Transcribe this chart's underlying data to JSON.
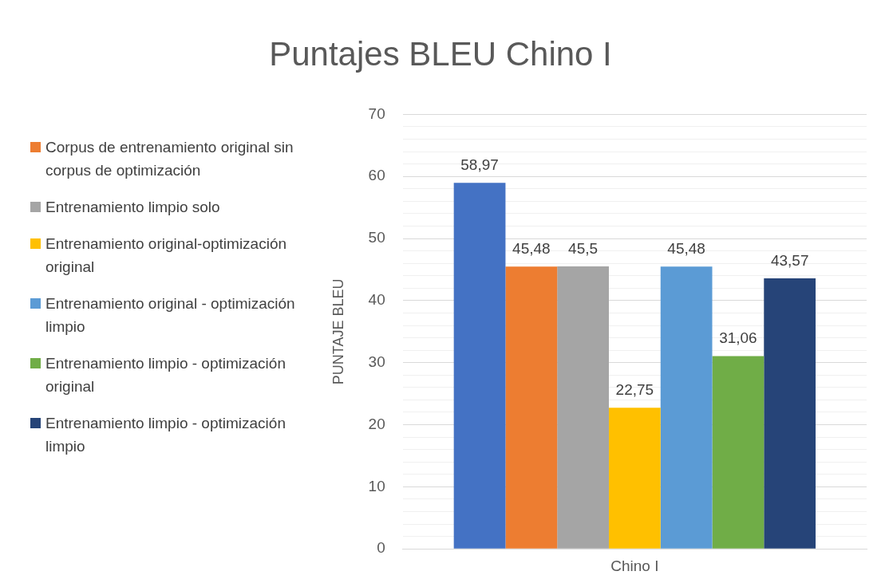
{
  "chart_data": {
    "type": "bar",
    "title": "Puntajes BLEU Chino I",
    "ylabel": "PUNTAJE BLEU",
    "categories": [
      "Chino I"
    ],
    "series": [
      {
        "color": "#4472c4",
        "values": [
          58.97
        ],
        "value_labels": [
          "58,97"
        ]
      },
      {
        "name": "Corpus de entrenamiento original sin corpus de optimización",
        "color": "#ed7d31",
        "values": [
          45.48
        ],
        "value_labels": [
          "45,48"
        ]
      },
      {
        "name": "Entrenamiento limpio solo",
        "color": "#a5a5a5",
        "values": [
          45.5
        ],
        "value_labels": [
          "45,5"
        ]
      },
      {
        "name": "Entrenamiento original-optimización original",
        "color": "#ffc000",
        "values": [
          22.75
        ],
        "value_labels": [
          "22,75"
        ]
      },
      {
        "name": "Entrenamiento original - optimización limpio",
        "color": "#5b9bd5",
        "values": [
          45.48
        ],
        "value_labels": [
          "45,48"
        ]
      },
      {
        "name": "Entrenamiento limpio - optimización original",
        "color": "#70ad47",
        "values": [
          31.06
        ],
        "value_labels": [
          "31,06"
        ]
      },
      {
        "name": "Entrenamiento limpio - optimización limpio",
        "color": "#264478",
        "values": [
          43.57
        ],
        "value_labels": [
          "43,57"
        ]
      }
    ],
    "ylim": [
      0,
      70
    ],
    "yticks": [
      0,
      {
        "value": 2,
        "label": null
      },
      {
        "value": 4,
        "label": null
      },
      {
        "value": 6,
        "label": null
      },
      {
        "value": 8,
        "label": null
      },
      10,
      {
        "value": 12,
        "label": null
      },
      {
        "value": 14,
        "label": null
      },
      {
        "value": 16,
        "label": null
      },
      {
        "value": 18,
        "label": null
      },
      20,
      {
        "value": 22,
        "label": null
      },
      {
        "value": 24,
        "label": null
      },
      {
        "value": 26,
        "label": null
      },
      {
        "value": 28,
        "label": null
      },
      30,
      {
        "value": 32,
        "label": null
      },
      {
        "value": 34,
        "label": null
      },
      {
        "value": 36,
        "label": null
      },
      {
        "value": 38,
        "label": null
      },
      40,
      {
        "value": 42,
        "label": null
      },
      {
        "value": 44,
        "label": null
      },
      {
        "value": 46,
        "label": null
      },
      {
        "value": 48,
        "label": null
      },
      50,
      {
        "value": 52,
        "label": null
      },
      {
        "value": 54,
        "label": null
      },
      {
        "value": 56,
        "label": null
      },
      {
        "value": 58,
        "label": null
      },
      60,
      {
        "value": 62,
        "label": null
      },
      {
        "value": 64,
        "label": null
      },
      {
        "value": 66,
        "label": null
      },
      {
        "value": 68,
        "label": null
      },
      70
    ],
    "grid": true,
    "legend": "left"
  }
}
